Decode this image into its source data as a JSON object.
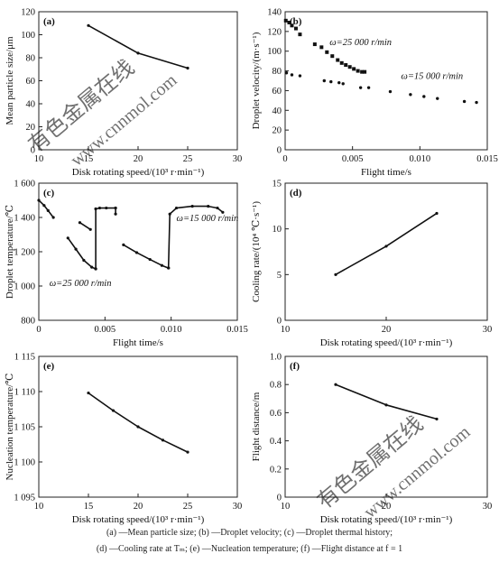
{
  "chart_data": [
    {
      "type": "line",
      "panel": "(a)",
      "xlabel": "Disk rotating speed/(10³ r·min⁻¹)",
      "ylabel": "Mean particle size/μm",
      "xlim": [
        10,
        30
      ],
      "ylim": [
        0,
        120
      ],
      "xticks": [
        "10",
        "15",
        "20",
        "25",
        "30"
      ],
      "yticks": [
        "0",
        "20",
        "40",
        "60",
        "80",
        "100",
        "120"
      ],
      "grid": false,
      "series": [
        {
          "x": [
            15,
            20,
            25
          ],
          "y": [
            108,
            84,
            71
          ]
        }
      ]
    },
    {
      "type": "line",
      "panel": "(b)",
      "xlabel": "Flight time/s",
      "ylabel": "Droplet velocity/(m·s⁻¹)",
      "xlim": [
        0,
        0.015
      ],
      "ylim": [
        0,
        140
      ],
      "xticks": [
        "0",
        "0.005",
        "0.010",
        "0.015"
      ],
      "yticks": [
        "0",
        "20",
        "40",
        "60",
        "80",
        "100",
        "120",
        "140"
      ],
      "grid": false,
      "annotations": [
        {
          "text": "ω=25 000 r/min",
          "x": 0.0033,
          "y": 106
        },
        {
          "text": "ω=15 000 r/min",
          "x": 0.0086,
          "y": 72
        }
      ],
      "series": [
        {
          "label": "ω=25 000 r/min (square markers)",
          "marker": "square",
          "x": [
            5e-05,
            0.0003,
            0.0005,
            0.0008,
            0.0011,
            0.0022,
            0.0027,
            0.0031,
            0.0035,
            0.0039,
            0.0042,
            0.0045,
            0.0048,
            0.0051,
            0.0054,
            0.0057,
            0.0059
          ],
          "y": [
            131,
            129,
            126,
            123,
            117,
            107,
            104,
            99,
            95,
            91,
            88,
            86,
            84,
            82,
            80,
            79,
            79
          ]
        },
        {
          "label": "ω=15 000 r/min (dot markers)",
          "marker": "dot",
          "segments": [
            {
              "x": [
                0.0001,
                0.0005,
                0.0011
              ],
              "y": [
                78,
                76,
                75
              ]
            },
            {
              "x": [
                0.0029,
                0.0034,
                0.004,
                0.0043
              ],
              "y": [
                70,
                69,
                68,
                67
              ]
            },
            {
              "x": [
                0.0056,
                0.0062,
                0.0078,
                0.0093,
                0.0103,
                0.0113,
                0.0133,
                0.0142
              ],
              "y": [
                63,
                63,
                59,
                56,
                54,
                52,
                49,
                48
              ]
            }
          ]
        }
      ]
    },
    {
      "type": "line",
      "panel": "(c)",
      "xlabel": "Flight time/s",
      "ylabel": "Droplet temperature/℃",
      "xlim": [
        0,
        0.015
      ],
      "ylim": [
        800,
        1600
      ],
      "xticks": [
        "0",
        "0.005",
        "0.010",
        "0.015"
      ],
      "yticks": [
        "800",
        "1 000",
        "1 200",
        "1 400",
        "1 600"
      ],
      "grid": false,
      "annotations": [
        {
          "text": "ω=15 000 r/min",
          "x": 0.0104,
          "y": 1378
        },
        {
          "text": "ω=25 000 r/min",
          "x": 0.0008,
          "y": 1000
        }
      ],
      "series": [
        {
          "label": "ω=25 000 r/min",
          "segments": [
            {
              "x": [
                0,
                0.0004,
                0.0007,
                0.0011
              ],
              "y": [
                1500,
                1470,
                1440,
                1400
              ]
            },
            {
              "x": [
                0.0022,
                0.0028,
                0.0034,
                0.004,
                0.0043
              ],
              "y": [
                1280,
                1215,
                1150,
                1110,
                1100
              ]
            },
            {
              "x": [
                0.0031,
                0.0039
              ],
              "y": [
                1370,
                1330
              ]
            },
            {
              "x": [
                0.0043,
                0.0043,
                0.0046,
                0.0051,
                0.0058
              ],
              "y": [
                1100,
                1450,
                1455,
                1455,
                1455
              ]
            },
            {
              "x": [
                0.0058,
                0.0058
              ],
              "y": [
                1455,
                1420
              ]
            }
          ]
        },
        {
          "label": "ω=15 000 r/min",
          "segments": [
            {
              "x": [
                0.0064,
                0.0074,
                0.0084,
                0.0093,
                0.0098
              ],
              "y": [
                1240,
                1195,
                1155,
                1120,
                1105
              ]
            },
            {
              "x": [
                0.0098,
                0.0099,
                0.0104,
                0.0116,
                0.0128,
                0.0135,
                0.0139
              ],
              "y": [
                1105,
                1420,
                1455,
                1465,
                1465,
                1455,
                1430
              ]
            }
          ]
        }
      ]
    },
    {
      "type": "line",
      "panel": "(d)",
      "xlabel": "Disk rotating speed/(10³ r·min⁻¹)",
      "ylabel": "Cooling rate/(10⁴ ℃·s⁻¹)",
      "xlim": [
        10,
        30
      ],
      "ylim": [
        0,
        15
      ],
      "xticks": [
        "10",
        "20",
        "30"
      ],
      "yticks": [
        "0",
        "5",
        "10",
        "15"
      ],
      "grid": false,
      "series": [
        {
          "x": [
            15,
            20,
            25
          ],
          "y": [
            5,
            8.1,
            11.7
          ]
        }
      ]
    },
    {
      "type": "line",
      "panel": "(e)",
      "xlabel": "Disk rotating speed/(10³ r·min⁻¹)",
      "ylabel": "Nucleation temperature/℃",
      "xlim": [
        10,
        30
      ],
      "ylim": [
        1095,
        1115
      ],
      "xticks": [
        "10",
        "15",
        "20",
        "25",
        "30"
      ],
      "yticks": [
        "1 095",
        "1 100",
        "1 105",
        "1 110",
        "1 115"
      ],
      "grid": false,
      "series": [
        {
          "x": [
            15,
            17.5,
            20,
            22.5,
            25
          ],
          "y": [
            1109.8,
            1107.3,
            1105,
            1103.1,
            1101.4
          ]
        }
      ]
    },
    {
      "type": "line",
      "panel": "(f)",
      "xlabel": "Disk rotating speed/(10³ r·min⁻¹)",
      "ylabel": "Flight distance/m",
      "xlim": [
        10,
        30
      ],
      "ylim": [
        0,
        1.0
      ],
      "xticks": [
        "10",
        "20",
        "30"
      ],
      "yticks": [
        "0",
        "0.2",
        "0.4",
        "0.6",
        "0.8",
        "1.0"
      ],
      "grid": false,
      "series": [
        {
          "x": [
            15,
            20,
            25
          ],
          "y": [
            0.8,
            0.655,
            0.555
          ]
        }
      ]
    }
  ],
  "caption": {
    "line1": "(a) —Mean particle size; (b) —Droplet velocity; (c) —Droplet thermal history;",
    "line2": "(d) —Cooling rate at Tₘ; (e) —Nucleation temperature; (f) —Flight distance at f = 1"
  },
  "watermark": "有色金属在线 www.cnnmol.com",
  "colors": {
    "line": "#111111",
    "axis": "#222222",
    "background": "#ffffff",
    "watermark": "#d4d4d4"
  }
}
